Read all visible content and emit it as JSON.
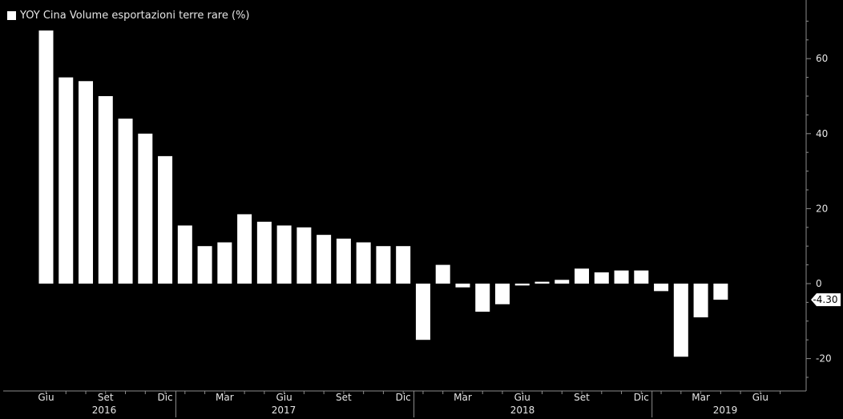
{
  "chart_data": {
    "type": "bar",
    "series": [
      {
        "name": "YOY Cina Volume esportazioni terre rare (%)",
        "color": "#ffffff",
        "categories": [
          "2016-06",
          "2016-07",
          "2016-08",
          "2016-09",
          "2016-10",
          "2016-11",
          "2016-12",
          "2017-01",
          "2017-02",
          "2017-03",
          "2017-04",
          "2017-05",
          "2017-06",
          "2017-07",
          "2017-08",
          "2017-09",
          "2017-10",
          "2017-11",
          "2017-12",
          "2018-01",
          "2018-02",
          "2018-03",
          "2018-04",
          "2018-05",
          "2018-06",
          "2018-07",
          "2018-08",
          "2018-09",
          "2018-10",
          "2018-11",
          "2018-12",
          "2019-01",
          "2019-02",
          "2019-03",
          "2019-04"
        ],
        "values": [
          67.5,
          55,
          54,
          50,
          44,
          40,
          34,
          15.5,
          10,
          11,
          18.5,
          16.5,
          15.5,
          15,
          13,
          12,
          11,
          10,
          10,
          -15,
          5,
          -1,
          -7.5,
          -5.5,
          -0.5,
          0.5,
          1,
          4,
          3,
          3.5,
          3.5,
          -2,
          -19.5,
          -9,
          -4.3
        ]
      }
    ],
    "last_value_label": "-4.30",
    "y_axis": {
      "position": "right",
      "ticks": [
        60,
        40,
        20,
        0,
        -20
      ],
      "ylim": [
        -28,
        73
      ]
    },
    "x_axis": {
      "month_ticks": [
        "Giu",
        "Set",
        "Dic",
        "Mar",
        "Giu",
        "Set",
        "Dic",
        "Mar",
        "Giu",
        "Set",
        "Dic",
        "Mar",
        "Giu"
      ],
      "years": [
        "2016",
        "2017",
        "2018",
        "2019"
      ]
    },
    "grid": false,
    "legend_position": "top-left",
    "background": "#000000",
    "axis_color": "#8c8c8c"
  }
}
